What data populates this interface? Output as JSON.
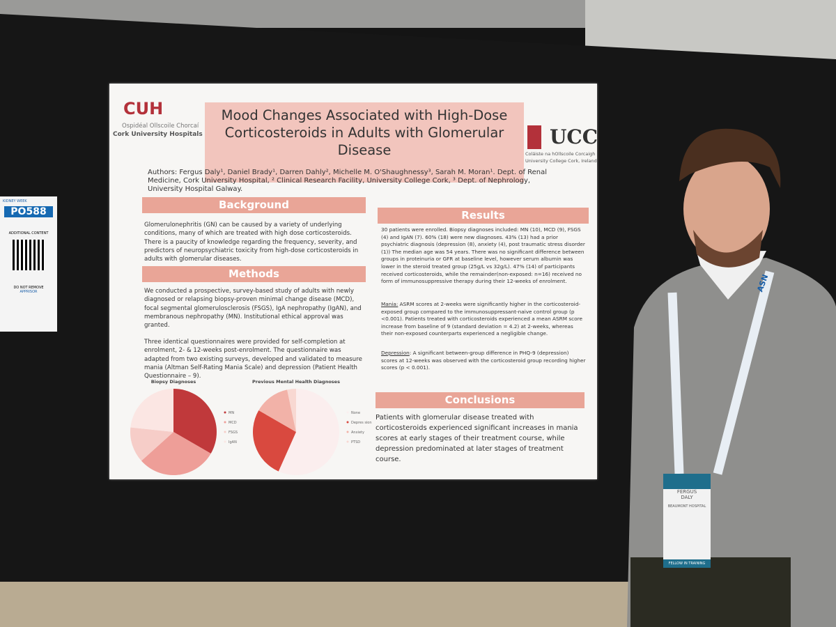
{
  "left_card": {
    "brand": "KIDNEY WEEK",
    "code": "PO588",
    "additional": "ADDITIONAL CONTENT",
    "notice": "DO NOT REMOVE",
    "vendor": "APPRISOR"
  },
  "poster": {
    "cuh": {
      "name": "CUH",
      "irish": "Ospidéal Ollscoile Chorcaí",
      "english": "Cork University Hospitals"
    },
    "title": "Mood Changes Associated with High-Dose Corticosteroids in Adults with Glomerular Disease",
    "ucc": {
      "name": "UCC",
      "irish": "Coláiste na hOllscoile Corcaigh",
      "english": "University College Cork, Ireland"
    },
    "authors": "Authors: Fergus Daly¹, Daniel Brady¹, Darren Dahly², Michelle M. O'Shaughnessy³, Sarah M. Moran¹.  Dept. of Renal Medicine, Cork University Hospital, ² Clinical Research Facility, University College Cork, ³ Dept. of Nephrology, University Hospital Galway.",
    "background": {
      "heading": "Background",
      "text": "Glomerulonephritis (GN) can be caused by a variety of underlying conditions, many of which are treated with high dose corticosteroids. There is a paucity of knowledge regarding the frequency, severity, and predictors of neuropsychiatric toxicity from high-dose corticosteroids in adults with glomerular diseases."
    },
    "methods": {
      "heading": "Methods",
      "paragraphs": [
        "We conducted a prospective, survey-based study of adults with newly diagnosed or relapsing biopsy-proven minimal change disease (MCD), focal segmental glomerulosclerosis (FSGS), IgA nephropathy (IgAN), and membranous nephropathy (MN). Institutional ethical approval was granted.",
        "Three identical questionnaires were provided for self-completion at enrolment, 2- & 12-weeks post-enrolment. The questionnaire was adapted from two existing surveys, developed and validated to measure mania (Altman Self-Rating Mania Scale) and depression (Patient Health Questionnaire – 9)."
      ]
    },
    "results": {
      "heading": "Results",
      "text": "30 patients were enrolled. Biopsy diagnoses included: MN (10), MCD (9), FSGS (4) and IgAN (7). 60% (18) were new diagnoses. 43% (13) had a prior psychiatric diagnosis (depression (8), anxiety (4), post traumatic stress disorder (1)) The median age was 54 years. There was no significant difference between groups in proteinuria or GFR at baseline level, however serum albumin was lower in the steroid treated group (25g/L vs 32g/L). 47% (14) of participants received corticosteroids, while the remainder(non-exposed: n=16) received no form of immunosuppressive therapy during their 12-weeks of enrolment.",
      "mania_label": "Mania:",
      "mania": " ASRM scores at 2-weeks were significantly higher in the corticosteroid-exposed group compared to the immunosuppressant-naive control group (p <0.001). Patients treated with corticosteroids experienced a mean ASRM score increase from baseline of 9 (standard deviation = 4.2) at 2-weeks, whereas their non-exposed counterparts experienced a negligible change.",
      "depression_label": "Depression",
      "depression": ": A significant between-group difference in PHQ-9 (depression) scores at 12-weeks was observed with the corticosteroid group recording higher scores (p < 0.001)."
    },
    "conclusions": {
      "heading": "Conclusions",
      "text": "Patients with glomerular disease treated with corticosteroids experienced significant increases in mania scores at early stages of their treatment course, while depression predominated at later stages of treatment course."
    }
  },
  "chart_data": [
    {
      "type": "pie",
      "title": "Biopsy Diagnoses",
      "categories": [
        "MN",
        "MCD",
        "FSGS",
        "IgAN"
      ],
      "values": [
        10,
        9,
        4,
        7
      ],
      "colors": [
        "#c0393b",
        "#ee9e98",
        "#f6cdc8",
        "#fbe6e3"
      ]
    },
    {
      "type": "pie",
      "title": "Previous Mental Health Diagnoses",
      "categories": [
        "None",
        "Depres sion",
        "Anxiety",
        "PTSD"
      ],
      "values": [
        17,
        8,
        4,
        1
      ],
      "colors": [
        "#fbeeee",
        "#d9493f",
        "#f2b2a8",
        "#f8d8d2"
      ]
    }
  ],
  "badge": {
    "first": "FERGUS",
    "last": "DALY",
    "org": "BEAUMONT HOSPITAL",
    "role": "FELLOW IN TRAINING"
  },
  "lanyard": "ASN"
}
